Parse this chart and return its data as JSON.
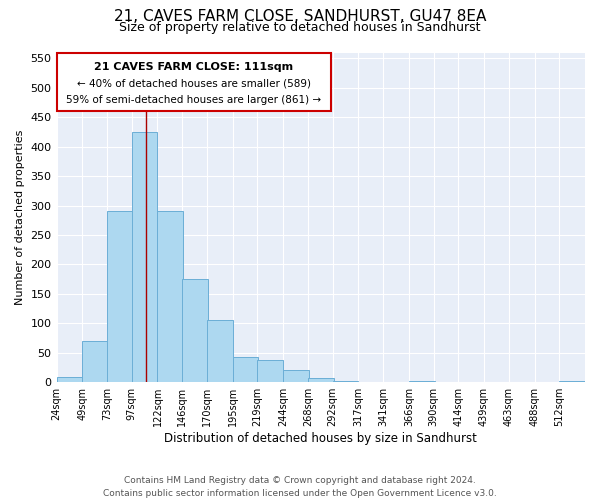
{
  "title": "21, CAVES FARM CLOSE, SANDHURST, GU47 8EA",
  "subtitle": "Size of property relative to detached houses in Sandhurst",
  "xlabel": "Distribution of detached houses by size in Sandhurst",
  "ylabel": "Number of detached properties",
  "bin_labels": [
    "24sqm",
    "49sqm",
    "73sqm",
    "97sqm",
    "122sqm",
    "146sqm",
    "170sqm",
    "195sqm",
    "219sqm",
    "244sqm",
    "268sqm",
    "292sqm",
    "317sqm",
    "341sqm",
    "366sqm",
    "390sqm",
    "414sqm",
    "439sqm",
    "463sqm",
    "488sqm",
    "512sqm"
  ],
  "bar_values": [
    8,
    70,
    290,
    425,
    290,
    175,
    105,
    43,
    38,
    20,
    7,
    2,
    0,
    0,
    2,
    0,
    0,
    0,
    0,
    0,
    2
  ],
  "bar_color": "#add8f0",
  "bar_edge_color": "#6baed6",
  "property_line_x": 111,
  "ylim": [
    0,
    560
  ],
  "yticks": [
    0,
    50,
    100,
    150,
    200,
    250,
    300,
    350,
    400,
    450,
    500,
    550
  ],
  "annotation_title": "21 CAVES FARM CLOSE: 111sqm",
  "annotation_line1": "← 40% of detached houses are smaller (589)",
  "annotation_line2": "59% of semi-detached houses are larger (861) →",
  "annotation_box_color": "#ffffff",
  "annotation_box_edge": "#cc0000",
  "property_line_color": "#aa0000",
  "footer1": "Contains HM Land Registry data © Crown copyright and database right 2024.",
  "footer2": "Contains public sector information licensed under the Open Government Licence v3.0.",
  "bin_edges": [
    24,
    49,
    73,
    97,
    122,
    146,
    170,
    195,
    219,
    244,
    268,
    292,
    317,
    341,
    366,
    390,
    414,
    439,
    463,
    488,
    512
  ],
  "background_color": "#e8eef8"
}
